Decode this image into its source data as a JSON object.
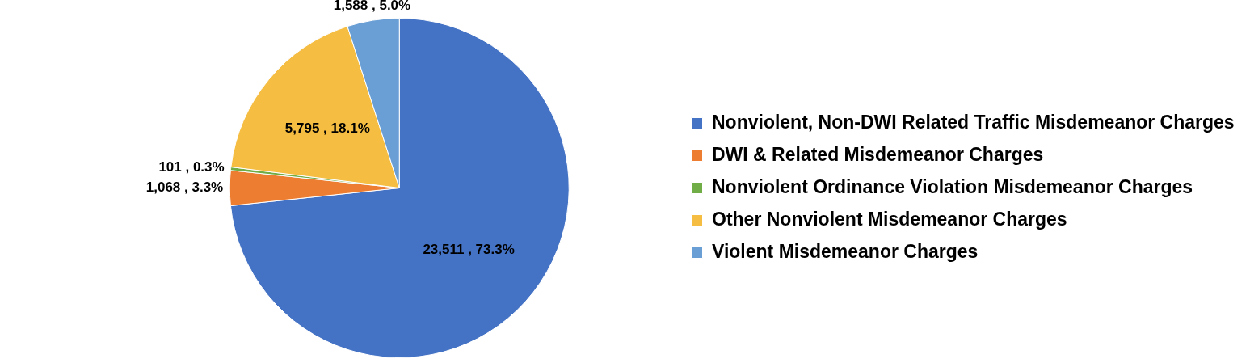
{
  "chart_data": {
    "type": "pie",
    "categories": [
      "Nonviolent, Non-DWI Related Traffic Misdemeanor Charges",
      "DWI & Related Misdemeanor Charges",
      "Nonviolent Ordinance Violation Misdemeanor Charges",
      "Other Nonviolent Misdemeanor Charges",
      "Violent Misdemeanor Charges"
    ],
    "values": [
      23511,
      1068,
      101,
      5795,
      1588
    ],
    "colors": [
      "#4472c4",
      "#ed7d31",
      "#70ad47",
      "#f5bd41",
      "#6a9fd5"
    ],
    "value_labels": [
      "23,511 , 73.3%",
      "1,068 , 3.3%",
      "101 , 0.3%",
      "5,795 , 18.1%",
      "1,588 , 5.0%"
    ],
    "legend": "right"
  }
}
